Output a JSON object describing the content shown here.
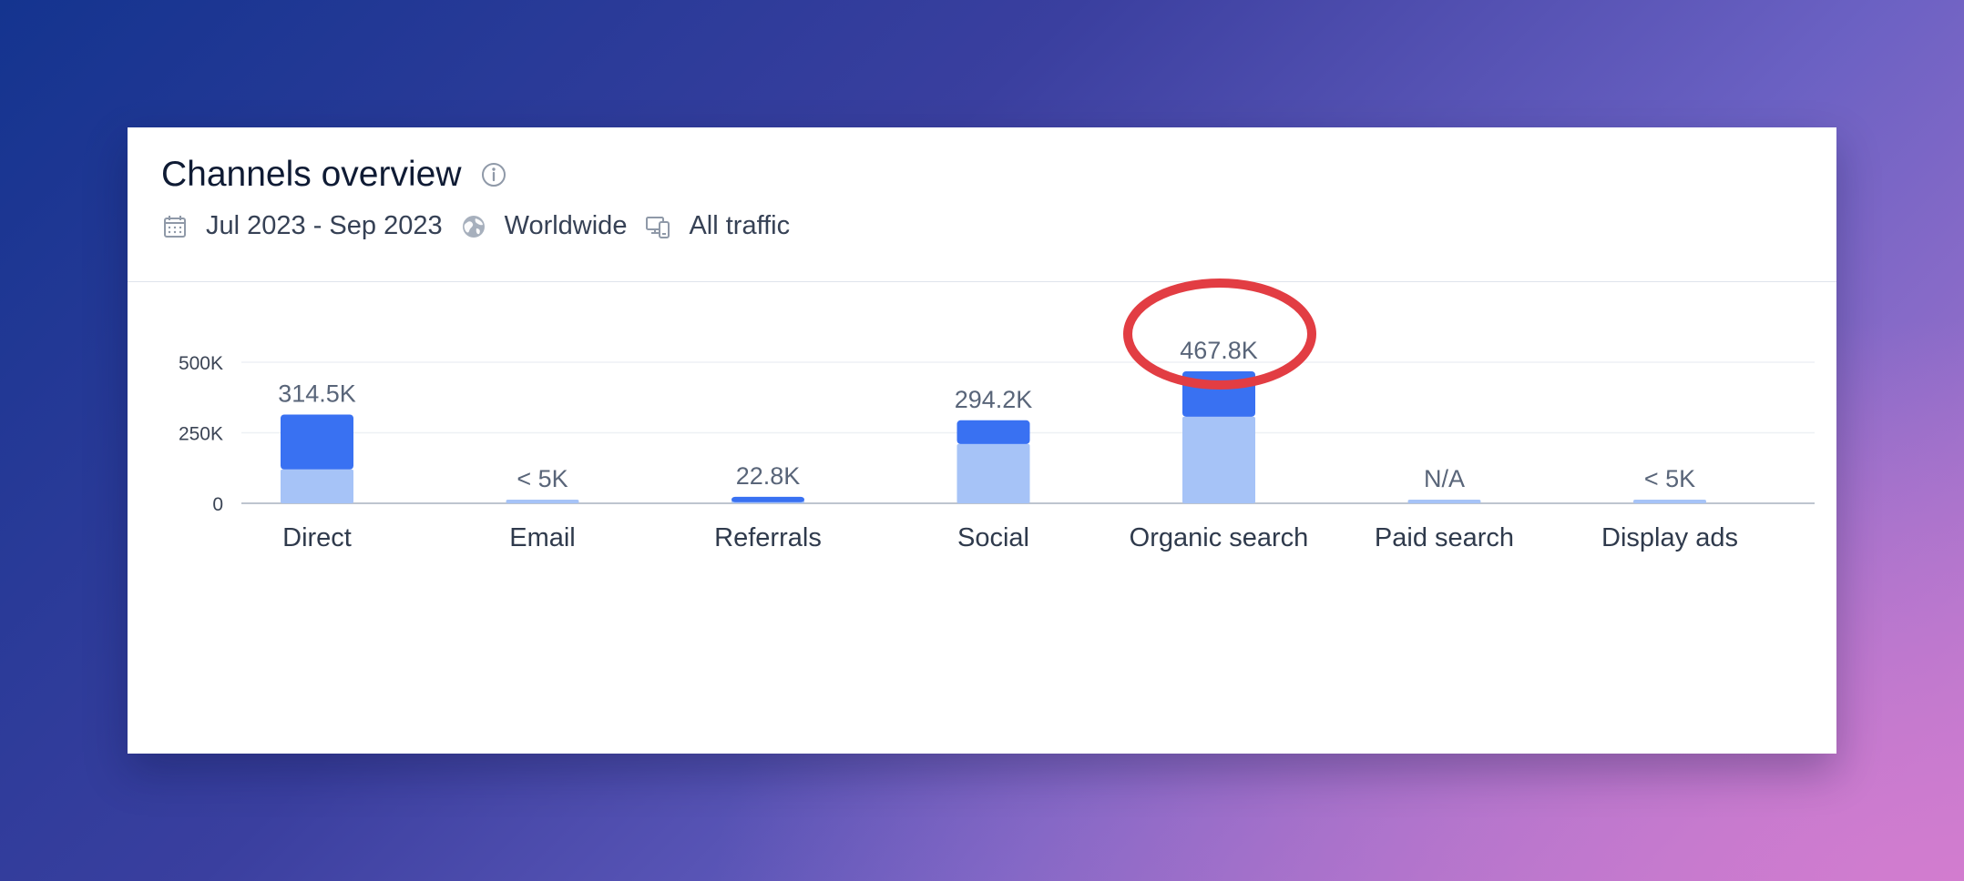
{
  "card": {
    "title": "Channels overview",
    "date_range": "Jul 2023 - Sep 2023",
    "region": "Worldwide",
    "traffic": "All traffic"
  },
  "icons": {
    "info": "info-icon",
    "calendar": "calendar-icon",
    "globe": "globe-icon",
    "devices": "devices-icon"
  },
  "colors": {
    "dark_bar": "#3971f2",
    "light_bar": "#a6c3f7",
    "highlight": "#e23d43"
  },
  "chart_data": {
    "type": "bar",
    "categories": [
      "Direct",
      "Email",
      "Referrals",
      "Social",
      "Organic search",
      "Paid search",
      "Display ads"
    ],
    "value_labels": [
      "314.5K",
      "< 5K",
      "22.8K",
      "294.2K",
      "467.8K",
      "N/A",
      "< 5K"
    ],
    "totals": [
      314500,
      5000,
      22800,
      294200,
      467800,
      5000,
      5000
    ],
    "series": [
      {
        "values": [
          120000,
          5000,
          4000,
          210000,
          307000,
          5000,
          5000
        ]
      },
      {
        "values": [
          194500,
          0,
          18800,
          84200,
          160800,
          0,
          0
        ]
      }
    ],
    "y_ticks": [
      "500K",
      "250K",
      "0"
    ],
    "ylim": [
      0,
      500000
    ],
    "grid": true,
    "highlighted_category": "Organic search"
  }
}
